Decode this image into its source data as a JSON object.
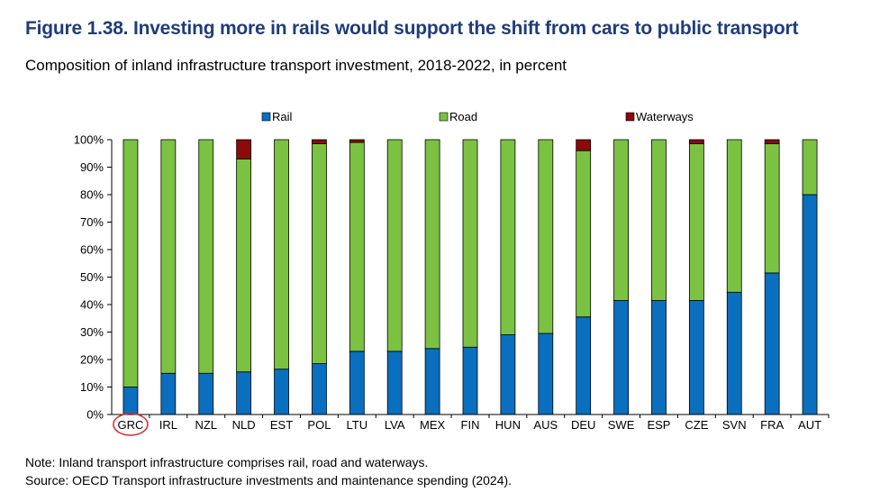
{
  "figure": {
    "title": "Figure 1.38. Investing more in rails would support the shift from cars to public transport",
    "subtitle": "Composition of inland infrastructure transport investment, 2018-2022, in percent",
    "note": "Note: Inland transport infrastructure comprises rail, road and waterways.",
    "source": "Source: OECD Transport infrastructure investments and maintenance spending (2024)."
  },
  "colors": {
    "rail": "#0a6fbf",
    "road": "#7cc242",
    "waterways": "#8b0a0a",
    "highlight": "#e0252b"
  },
  "chart_data": {
    "type": "bar",
    "stacked": true,
    "categories": [
      "GRC",
      "IRL",
      "NZL",
      "NLD",
      "EST",
      "POL",
      "LTU",
      "LVA",
      "MEX",
      "FIN",
      "HUN",
      "AUS",
      "DEU",
      "SWE",
      "ESP",
      "CZE",
      "SVN",
      "FRA",
      "AUT"
    ],
    "highlighted_category": "GRC",
    "series": [
      {
        "name": "Rail",
        "values": [
          10,
          15,
          15,
          15.5,
          16.5,
          18.5,
          23,
          23,
          24,
          24.5,
          29,
          29.5,
          35.5,
          41.5,
          41.5,
          41.5,
          44.5,
          51.5,
          80
        ]
      },
      {
        "name": "Road",
        "values": [
          90,
          85,
          85,
          77.5,
          83.5,
          80,
          76,
          77,
          76,
          75.5,
          71,
          70.5,
          60.5,
          58.5,
          58.5,
          57,
          55.5,
          47,
          20
        ]
      },
      {
        "name": "Waterways",
        "values": [
          0,
          0,
          0,
          7,
          0,
          1.5,
          1,
          0,
          0,
          0,
          0,
          0,
          4,
          0,
          0,
          1.5,
          0,
          1.5,
          0
        ]
      }
    ],
    "ylim": [
      0,
      100
    ],
    "yticks": [
      "0%",
      "10%",
      "20%",
      "30%",
      "40%",
      "50%",
      "60%",
      "70%",
      "80%",
      "90%",
      "100%"
    ],
    "legend_position": "top"
  }
}
